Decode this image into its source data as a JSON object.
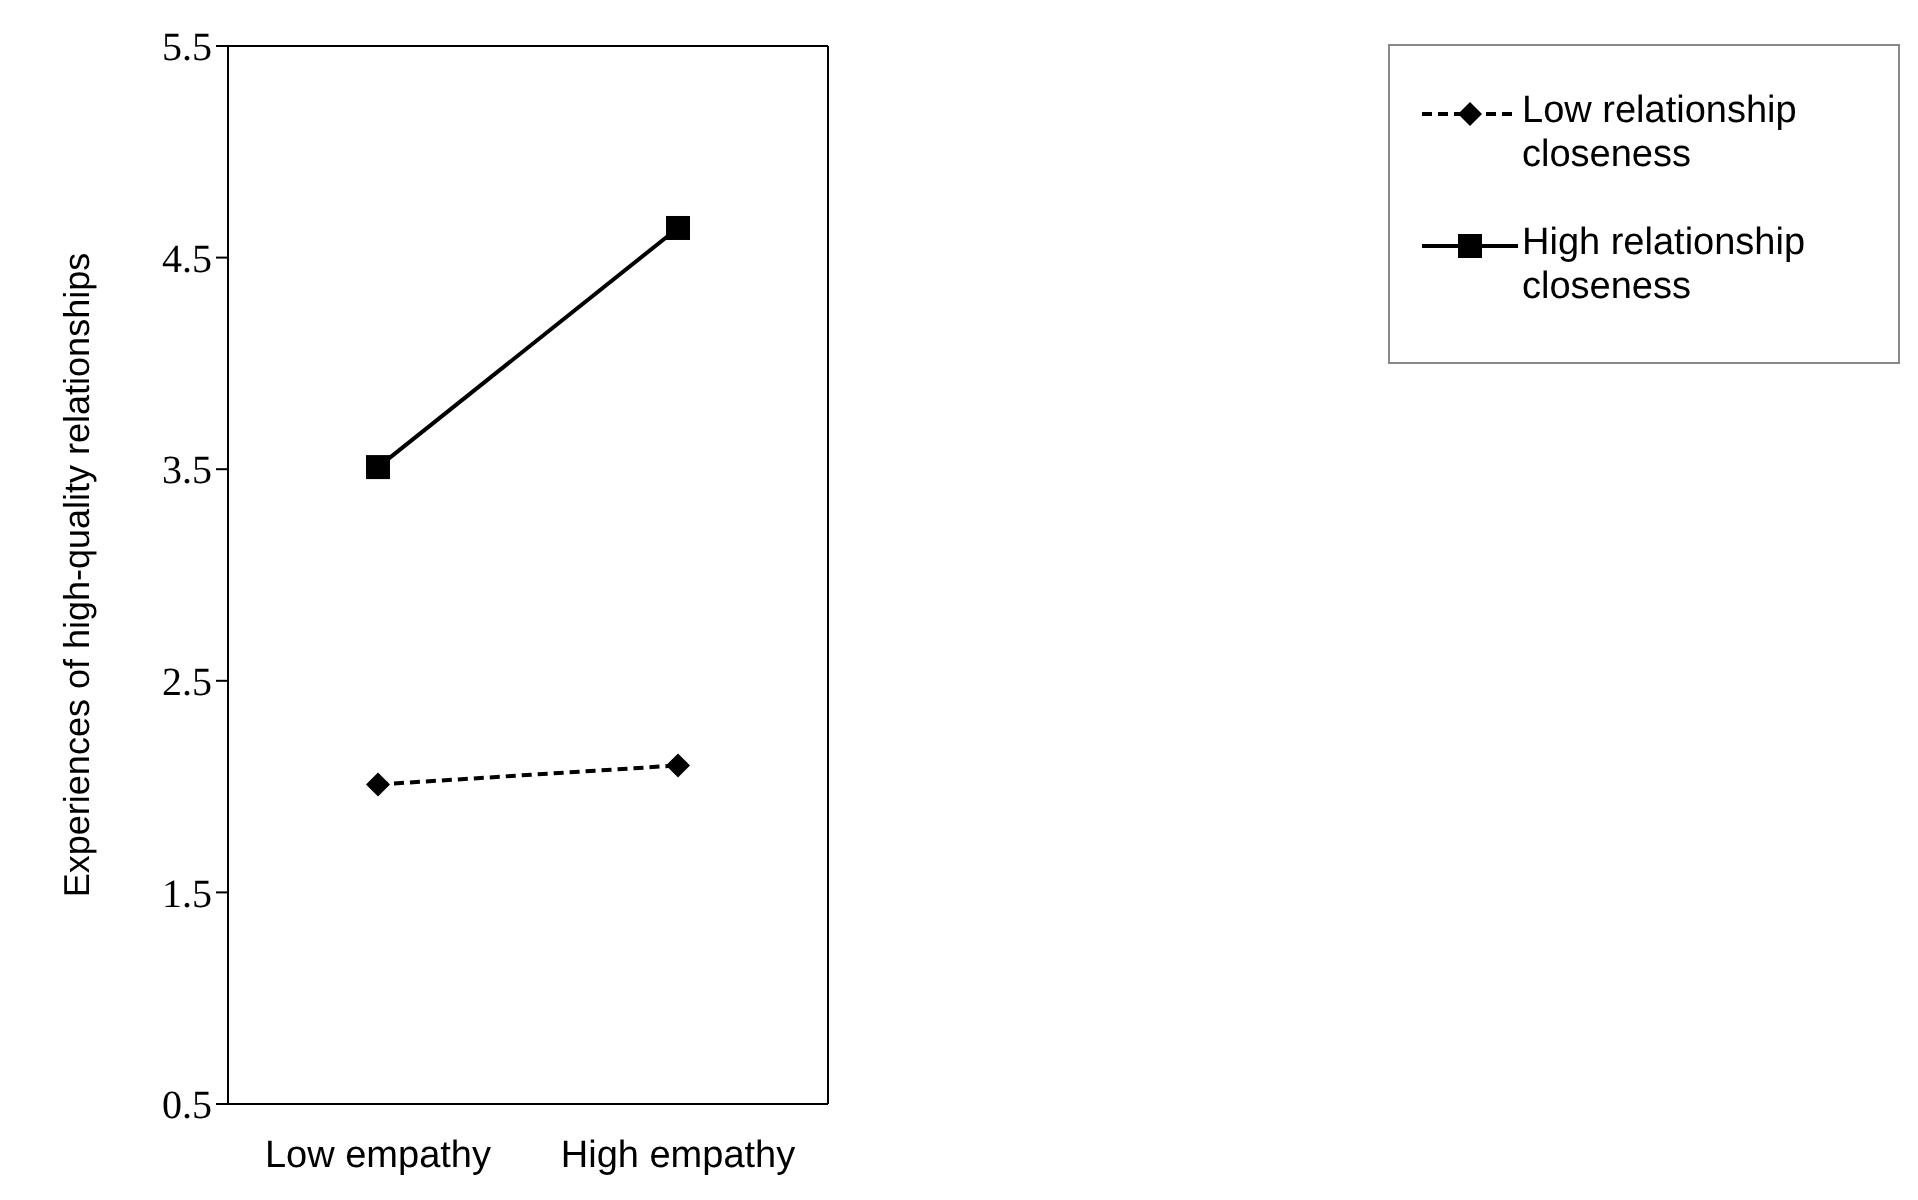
{
  "chart_data": {
    "type": "line",
    "ylabel": "Experiences of high-quality relationships",
    "categories": [
      "Low empathy",
      "High empathy"
    ],
    "series": [
      {
        "name": "Low relationship closeness",
        "color": "#000000",
        "values": [
          2.01,
          2.1
        ],
        "marker": "diamond",
        "line_style": "dashed"
      },
      {
        "name": "High relationship closeness",
        "color": "#000000",
        "values": [
          3.51,
          4.64
        ],
        "marker": "square",
        "line_style": "solid"
      }
    ],
    "ylim": [
      0.5,
      5.5
    ],
    "yticks": [
      0.5,
      1.5,
      2.5,
      3.5,
      4.5,
      5.5
    ],
    "grid": false,
    "legend": "top right"
  }
}
